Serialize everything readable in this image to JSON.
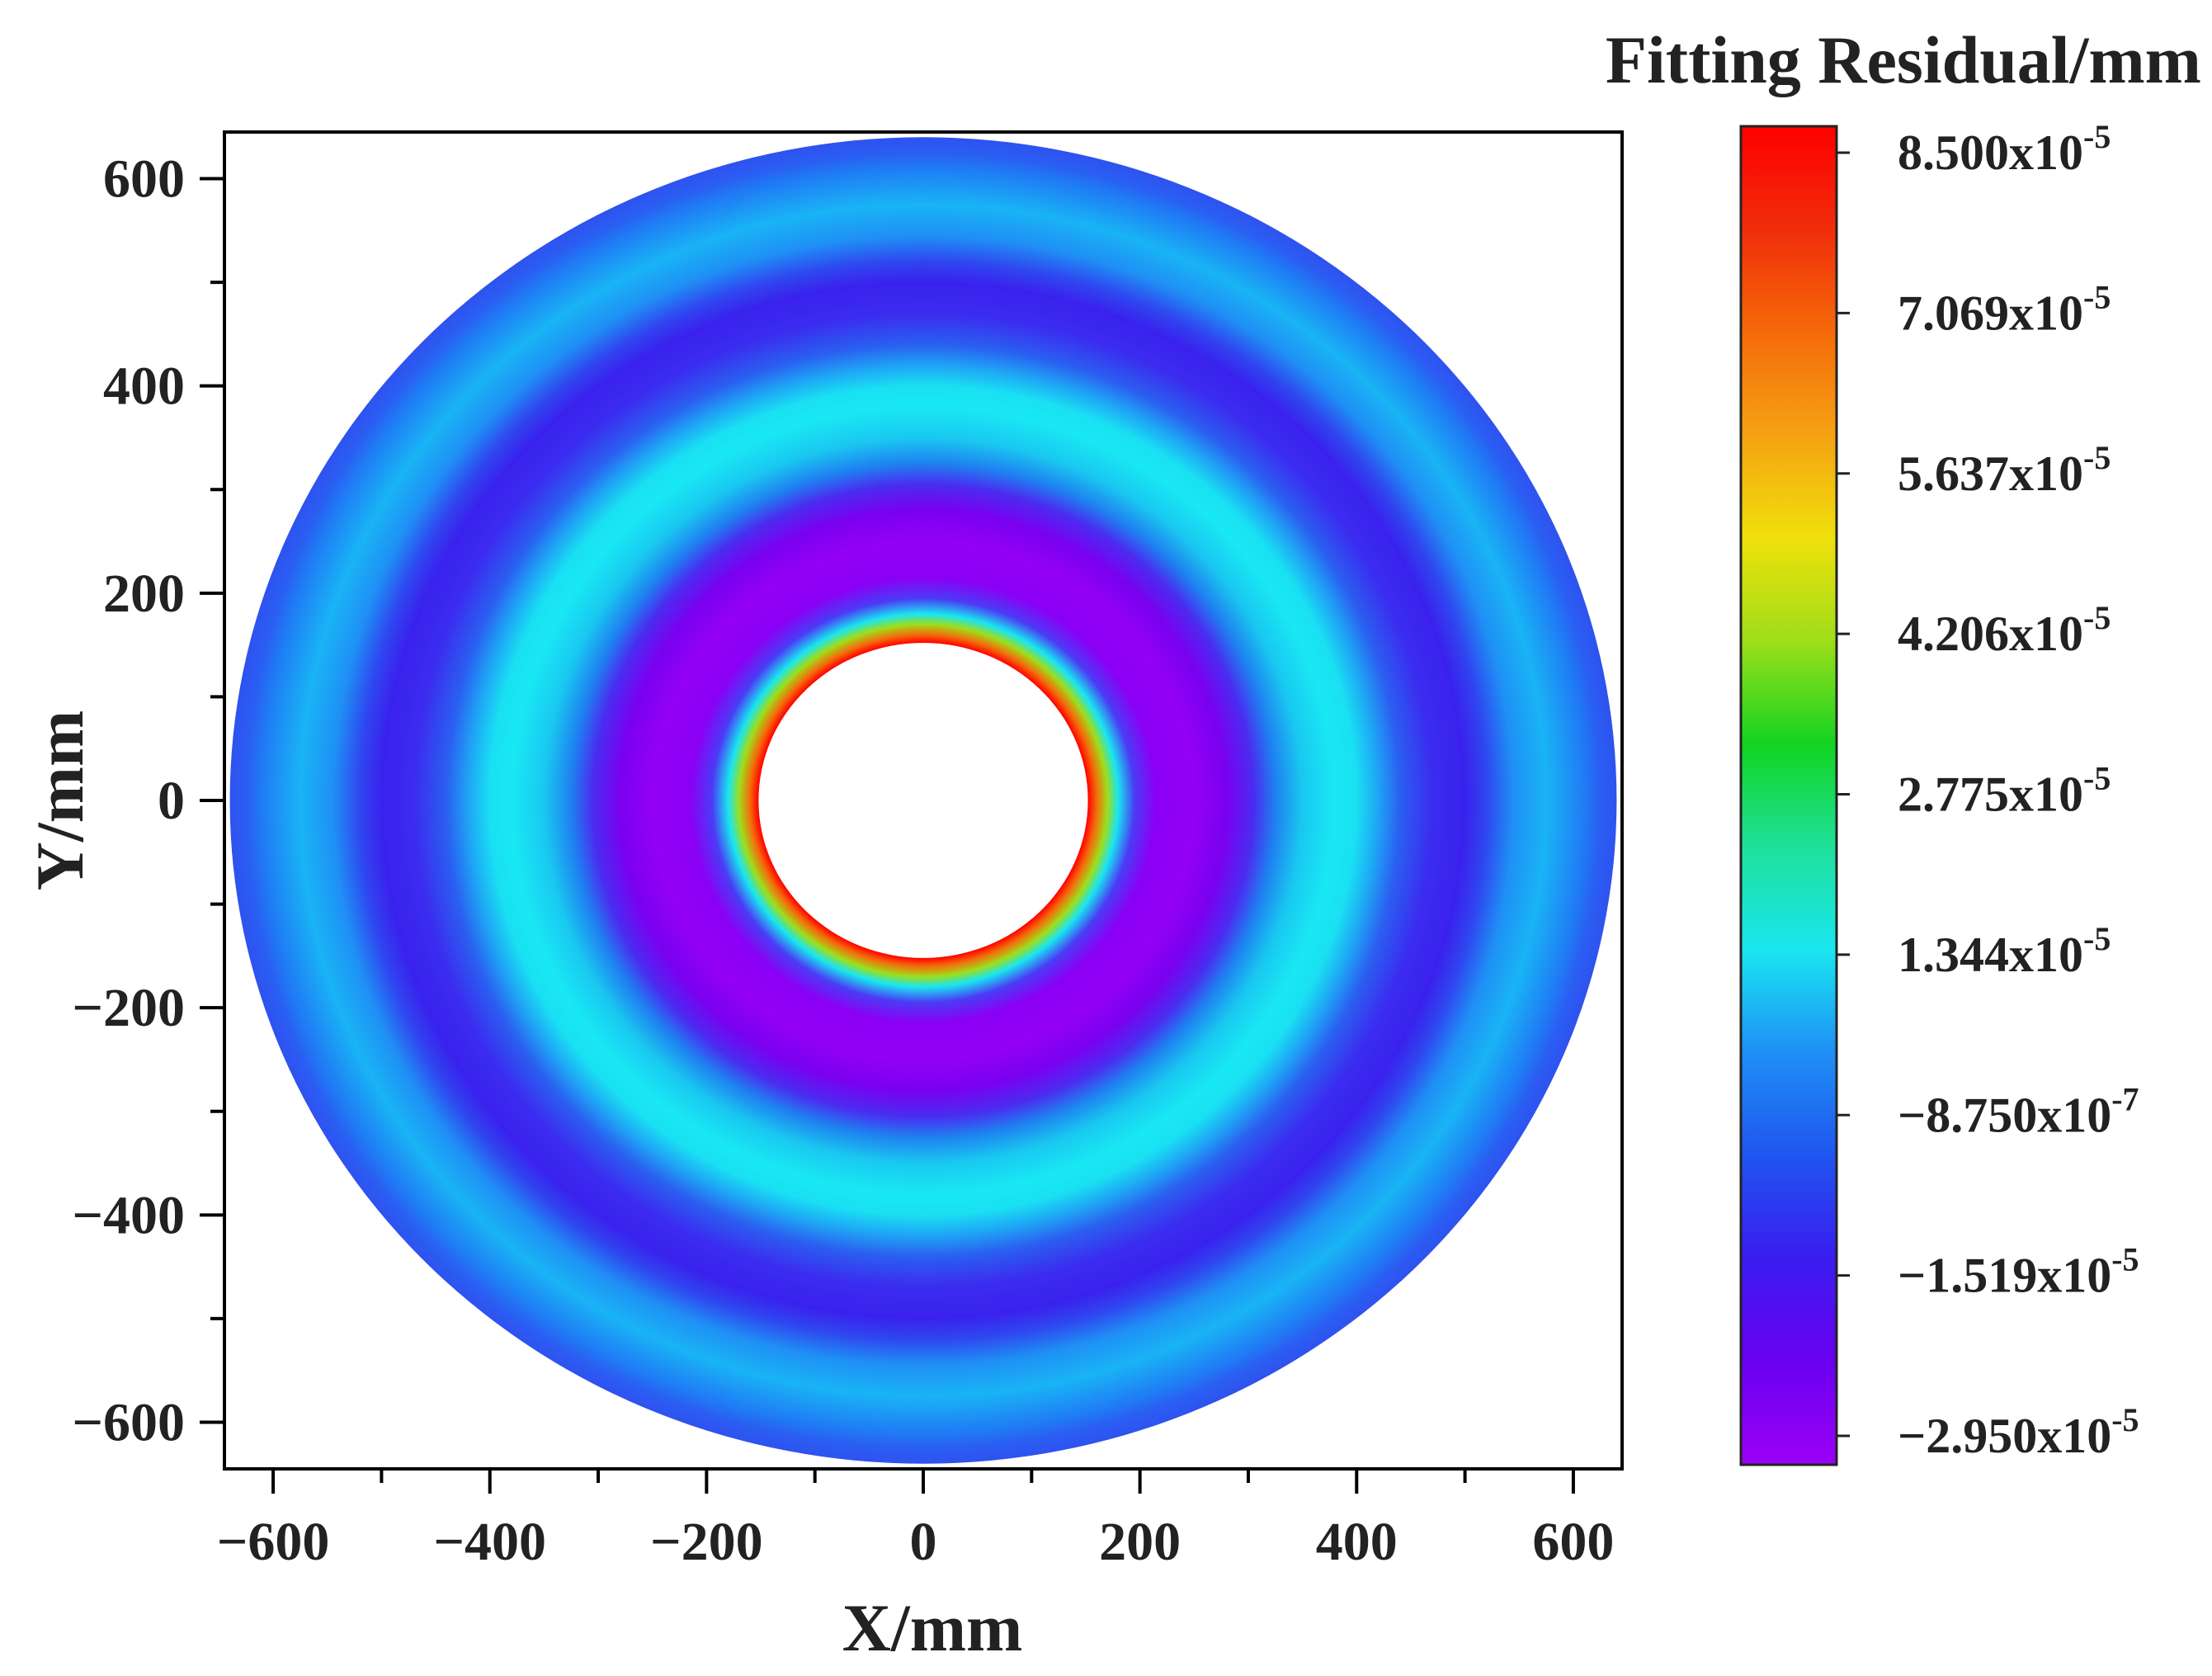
{
  "chart_data": {
    "type": "heatmap",
    "subtype": "annular-contour",
    "title": "",
    "xlabel": "X/mm",
    "ylabel": "Y/mm",
    "xlim": [
      -645,
      645
    ],
    "ylim": [
      -645,
      645
    ],
    "xticks": [
      -600,
      -400,
      -200,
      0,
      200,
      400,
      600
    ],
    "yticks": [
      600,
      400,
      200,
      0,
      -200,
      -400,
      -600
    ],
    "xtick_labels": [
      "−600",
      "−400",
      "−200",
      "0",
      "200",
      "400",
      "600"
    ],
    "ytick_labels": [
      "600",
      "400",
      "200",
      "0",
      "−200",
      "−400",
      "−600"
    ],
    "minor_tick_step": 100,
    "inner_radius": 152,
    "outer_radius": 640,
    "colorbar": {
      "title": "Fitting Residual/mm",
      "min": -2.95e-05,
      "max": 8.5e-05,
      "tick_labels": [
        {
          "mantissa": "8.500x10",
          "exponent": "-5"
        },
        {
          "mantissa": "7.069x10",
          "exponent": "-5"
        },
        {
          "mantissa": "5.637x10",
          "exponent": "-5"
        },
        {
          "mantissa": "4.206x10",
          "exponent": "-5"
        },
        {
          "mantissa": "2.775x10",
          "exponent": "-5"
        },
        {
          "mantissa": "1.344x10",
          "exponent": "-5"
        },
        {
          "mantissa": "−8.750x10",
          "exponent": "-7"
        },
        {
          "mantissa": "−1.519x10",
          "exponent": "-5"
        },
        {
          "mantissa": "−2.950x10",
          "exponent": "-5"
        }
      ],
      "colors": [
        "#9b00f5",
        "#6a00f0",
        "#3a1cf0",
        "#1f55f0",
        "#1f8ff5",
        "#19e6f0",
        "#1fe09a",
        "#12d420",
        "#9ede1a",
        "#f0e00c",
        "#f5a212",
        "#f56a0a",
        "#f02d0a",
        "#ff0000"
      ]
    },
    "radial_profile": {
      "r": [
        152,
        160,
        170,
        180,
        195,
        215,
        250,
        280,
        305,
        325,
        350,
        380,
        400,
        420,
        440,
        470,
        500,
        520,
        545,
        575,
        610,
        625,
        640
      ],
      "color": [
        "#ff0000",
        "#f56a0a",
        "#9ede1a",
        "#19e6f0",
        "#4a3cf5",
        "#8a00f5",
        "#9300f5",
        "#7a00f0",
        "#4a2cf0",
        "#1f80f0",
        "#19c8f0",
        "#19e8f4",
        "#19e0f2",
        "#1fa4f5",
        "#2a60f0",
        "#3b2cf0",
        "#3a22ee",
        "#2f46ef",
        "#1f90f5",
        "#19b4f5",
        "#1f7cf5",
        "#2a5ef2",
        "#2f52f0"
      ]
    }
  }
}
